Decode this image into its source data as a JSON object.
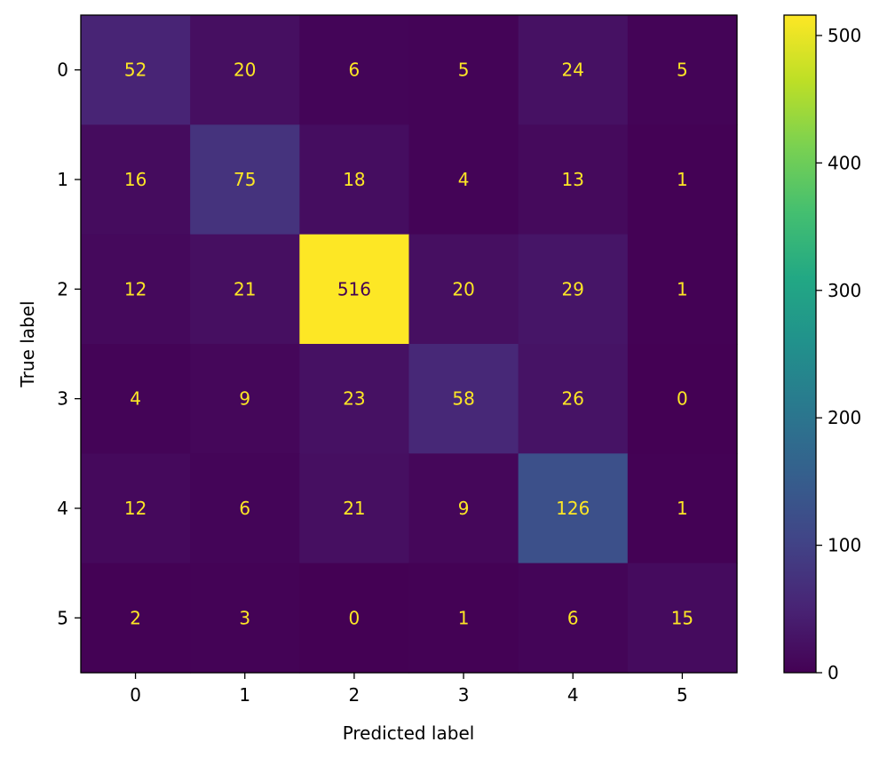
{
  "chart_data": {
    "type": "heatmap",
    "title": "",
    "xlabel": "Predicted label",
    "ylabel": "True label",
    "x_categories": [
      "0",
      "1",
      "2",
      "3",
      "4",
      "5"
    ],
    "y_categories": [
      "0",
      "1",
      "2",
      "3",
      "4",
      "5"
    ],
    "matrix": [
      [
        52,
        20,
        6,
        5,
        24,
        5
      ],
      [
        16,
        75,
        18,
        4,
        13,
        1
      ],
      [
        12,
        21,
        516,
        20,
        29,
        1
      ],
      [
        4,
        9,
        23,
        58,
        26,
        0
      ],
      [
        12,
        6,
        21,
        9,
        126,
        1
      ],
      [
        2,
        3,
        0,
        1,
        6,
        15
      ]
    ],
    "colormap": "viridis",
    "color_range": [
      0,
      516
    ],
    "colorbar_ticks": [
      0,
      100,
      200,
      300,
      400,
      500
    ],
    "text_color_light": "#fde725",
    "text_color_dark": "#440154",
    "grid": false
  }
}
